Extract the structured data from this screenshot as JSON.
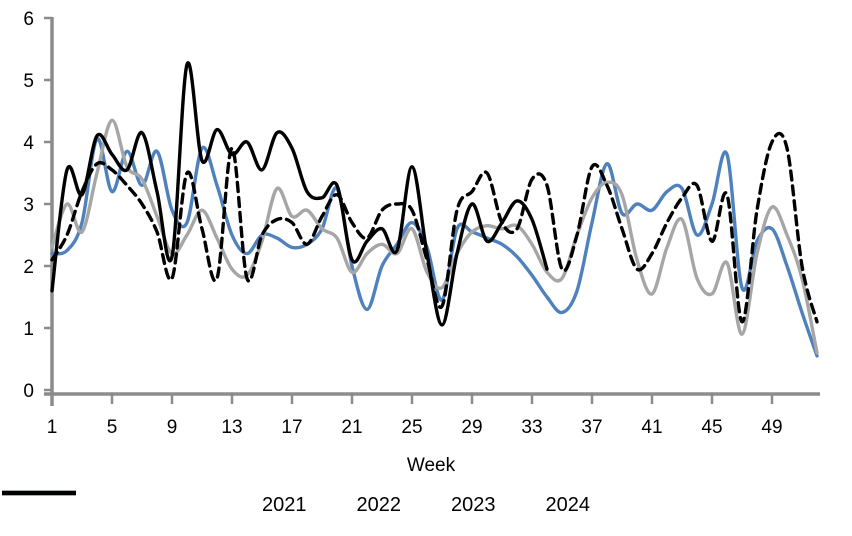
{
  "chart_data": {
    "type": "line",
    "title": "",
    "xlabel": "Week",
    "ylabel": "",
    "xlim": [
      1,
      52
    ],
    "ylim": [
      0,
      6
    ],
    "grid": false,
    "legend_position": "bottom",
    "axis_color": "#8c8c8c",
    "x_ticks": [
      1,
      5,
      9,
      13,
      17,
      21,
      25,
      29,
      33,
      37,
      41,
      45,
      49
    ],
    "y_ticks": [
      0,
      1,
      2,
      3,
      4,
      5,
      6
    ],
    "x": "weeks 1-52",
    "series": [
      {
        "name": "2021",
        "color": "#4f81bd",
        "style": "solid",
        "start_week": 1,
        "values": [
          2.2,
          2.25,
          2.7,
          4.05,
          3.2,
          3.85,
          3.3,
          3.85,
          2.9,
          2.7,
          3.9,
          3.3,
          2.5,
          2.2,
          2.5,
          2.45,
          2.3,
          2.35,
          2.6,
          3.25,
          2.0,
          1.3,
          2.0,
          2.35,
          2.7,
          2.3,
          1.45,
          2.6,
          2.55,
          2.45,
          2.35,
          2.15,
          1.85,
          1.5,
          1.25,
          1.6,
          2.7,
          3.65,
          2.85,
          3.0,
          2.9,
          3.2,
          3.25,
          2.5,
          3.0,
          3.8,
          1.65,
          2.4,
          2.6,
          2.0,
          1.25,
          0.55
        ]
      },
      {
        "name": "2022",
        "color": "#a6a6a6",
        "style": "solid",
        "start_week": 1,
        "values": [
          2.3,
          3.0,
          2.55,
          3.5,
          4.35,
          3.6,
          3.4,
          2.8,
          2.2,
          2.5,
          2.9,
          2.45,
          1.95,
          1.85,
          2.4,
          3.25,
          2.8,
          2.9,
          2.6,
          2.45,
          1.9,
          2.2,
          2.35,
          2.2,
          2.6,
          1.9,
          1.65,
          2.2,
          2.55,
          2.65,
          2.6,
          2.65,
          2.35,
          1.9,
          1.8,
          2.5,
          3.1,
          3.35,
          3.15,
          2.1,
          1.55,
          2.3,
          2.75,
          1.8,
          1.55,
          2.05,
          0.9,
          2.2,
          2.95,
          2.5,
          1.8,
          0.6
        ]
      },
      {
        "name": "2023",
        "color": "#000000",
        "style": "dashed",
        "start_week": 1,
        "values": [
          2.1,
          2.5,
          3.2,
          3.65,
          3.55,
          3.3,
          3.0,
          2.55,
          1.8,
          3.5,
          2.6,
          1.8,
          3.9,
          1.8,
          2.5,
          2.75,
          2.7,
          2.35,
          2.8,
          3.15,
          2.7,
          2.45,
          2.9,
          3.0,
          2.9,
          2.1,
          1.35,
          2.9,
          3.2,
          3.5,
          2.7,
          2.6,
          3.4,
          3.3,
          1.95,
          2.5,
          3.6,
          3.3,
          2.6,
          1.95,
          2.2,
          2.7,
          3.1,
          3.3,
          2.4,
          3.15,
          1.1,
          2.9,
          4.0,
          3.9,
          2.0,
          1.1
        ]
      },
      {
        "name": "2024",
        "color": "#000000",
        "style": "solid",
        "start_week": 1,
        "values": [
          1.6,
          3.55,
          3.15,
          4.1,
          3.8,
          3.55,
          4.15,
          3.2,
          2.15,
          5.25,
          3.7,
          4.2,
          3.8,
          4.0,
          3.55,
          4.15,
          3.9,
          3.2,
          3.1,
          3.3,
          2.1,
          2.4,
          2.6,
          2.25,
          3.6,
          2.2,
          1.05,
          2.2,
          3.0,
          2.4,
          2.7,
          3.05,
          2.75,
          1.95
        ]
      }
    ]
  }
}
